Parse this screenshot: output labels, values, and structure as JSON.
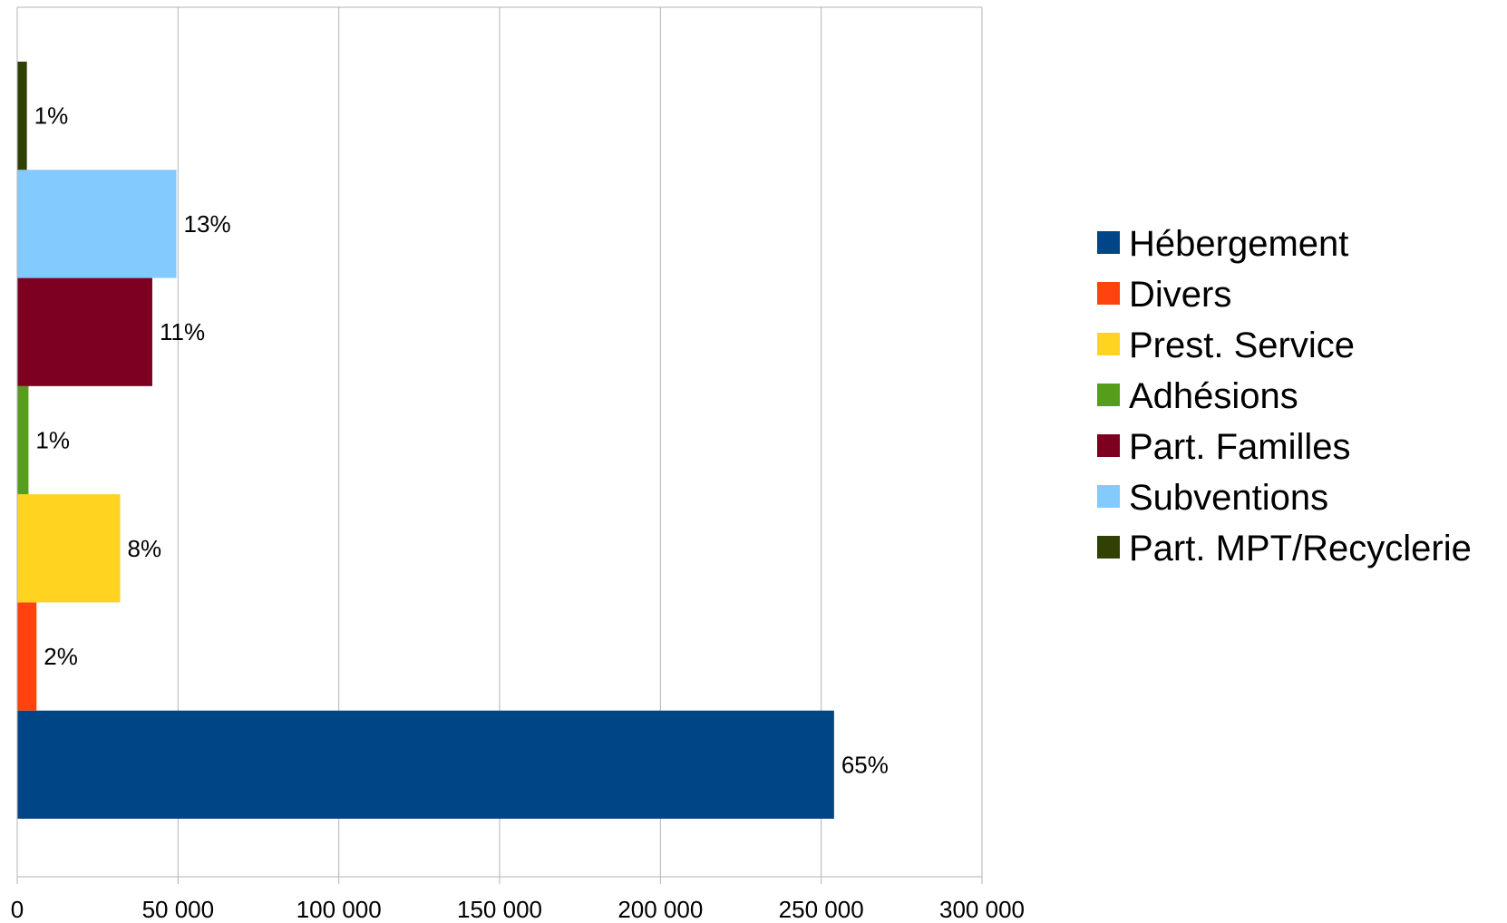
{
  "chart_data": {
    "type": "bar",
    "orientation": "horizontal",
    "title": "",
    "xlabel": "",
    "ylabel": "",
    "xlim": [
      0,
      300000
    ],
    "x_ticks": [
      0,
      50000,
      100000,
      150000,
      200000,
      250000,
      300000
    ],
    "x_tick_labels": [
      "0",
      "50 000",
      "100 000",
      "150 000",
      "200 000",
      "250 000",
      "300 000"
    ],
    "grid": "vertical",
    "legend_position": "right",
    "series": [
      {
        "name": "Hébergement",
        "value": 254000,
        "label": "65%",
        "color": "#004586"
      },
      {
        "name": "Divers",
        "value": 6000,
        "label": "2%",
        "color": "#ff420e"
      },
      {
        "name": "Prest. Service",
        "value": 32000,
        "label": "8%",
        "color": "#ffd320"
      },
      {
        "name": "Adhésions",
        "value": 3500,
        "label": "1%",
        "color": "#579d1c"
      },
      {
        "name": "Part. Familles",
        "value": 42000,
        "label": "11%",
        "color": "#7e0021"
      },
      {
        "name": "Subventions",
        "value": 49500,
        "label": "13%",
        "color": "#83caff"
      },
      {
        "name": "Part. MPT/Recyclerie",
        "value": 3000,
        "label": "1%",
        "color": "#314004"
      }
    ]
  }
}
